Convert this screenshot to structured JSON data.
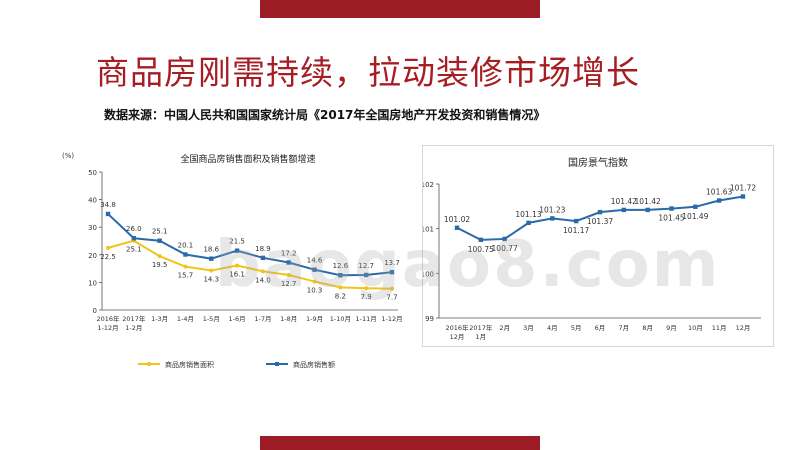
{
  "slide": {
    "title": "商品房刚需持续，拉动装修市场增长",
    "source": "数据来源：中国人民共和国国家统计局《2017年全国房地产开发投资和销售情况》",
    "watermark": "baogao8.com"
  },
  "colors": {
    "accent": "#9c1e24",
    "area_series": "#f0c419",
    "sales_series": "#2a6aa8",
    "index_series": "#2a6aa8"
  },
  "chart_data": [
    {
      "type": "line",
      "title": "全国商品房销售面积及销售额增速",
      "unit_label": "(%)",
      "categories": [
        "2016年\n1-12月",
        "2017年\n1-2月",
        "1-3月",
        "1-4月",
        "1-5月",
        "1-6月",
        "1-7月",
        "1-8月",
        "1-9月",
        "1-10月",
        "1-11月",
        "1-12月"
      ],
      "ylim": [
        0,
        50
      ],
      "yticks": [
        "0",
        "10",
        "20",
        "30",
        "40",
        "50"
      ],
      "grid": false,
      "legend_position": "bottom",
      "series": [
        {
          "name": "商品房销售面积",
          "color": "#f0c419",
          "values": [
            22.5,
            25.1,
            19.5,
            15.7,
            14.3,
            16.1,
            14.0,
            12.7,
            10.3,
            8.2,
            7.9,
            7.7
          ]
        },
        {
          "name": "商品房销售额",
          "color": "#2a6aa8",
          "values": [
            34.8,
            26.0,
            25.1,
            20.1,
            18.6,
            21.5,
            18.9,
            17.2,
            14.6,
            12.6,
            12.7,
            13.7
          ]
        }
      ],
      "data_labels": {
        "area": [
          "22.5",
          "25.1",
          "19.5",
          "15.7",
          "14.3",
          "16.1",
          "14.0",
          "12.7",
          "10.3",
          "8.2",
          "7.9",
          "7.7"
        ],
        "sales": [
          "34.8",
          "26.0",
          "25.1",
          "20.1",
          "18.6",
          "21.5",
          "18.9",
          "17.2",
          "14.6",
          "12.6",
          "12.7",
          "13.7"
        ]
      }
    },
    {
      "type": "line",
      "title": "国房景气指数",
      "categories": [
        "2016年\n12月",
        "2017年\n1月",
        "2月",
        "3月",
        "4月",
        "5月",
        "6月",
        "7月",
        "8月",
        "9月",
        "10月",
        "11月",
        "12月"
      ],
      "ylim": [
        99,
        102
      ],
      "yticks": [
        "99",
        "100",
        "101",
        "102"
      ],
      "grid": false,
      "series": [
        {
          "color": "#2a6aa8",
          "values": [
            101.02,
            100.75,
            100.77,
            101.13,
            101.23,
            101.17,
            101.37,
            101.42,
            101.42,
            101.45,
            101.49,
            101.63,
            101.72
          ]
        }
      ],
      "data_labels": [
        "101.02",
        "100.75",
        "100.77",
        "101.13",
        "101.23",
        "101.17",
        "101.37",
        "101.42",
        "101.42",
        "101.45",
        "101.49",
        "101.63",
        "101.72"
      ]
    }
  ]
}
